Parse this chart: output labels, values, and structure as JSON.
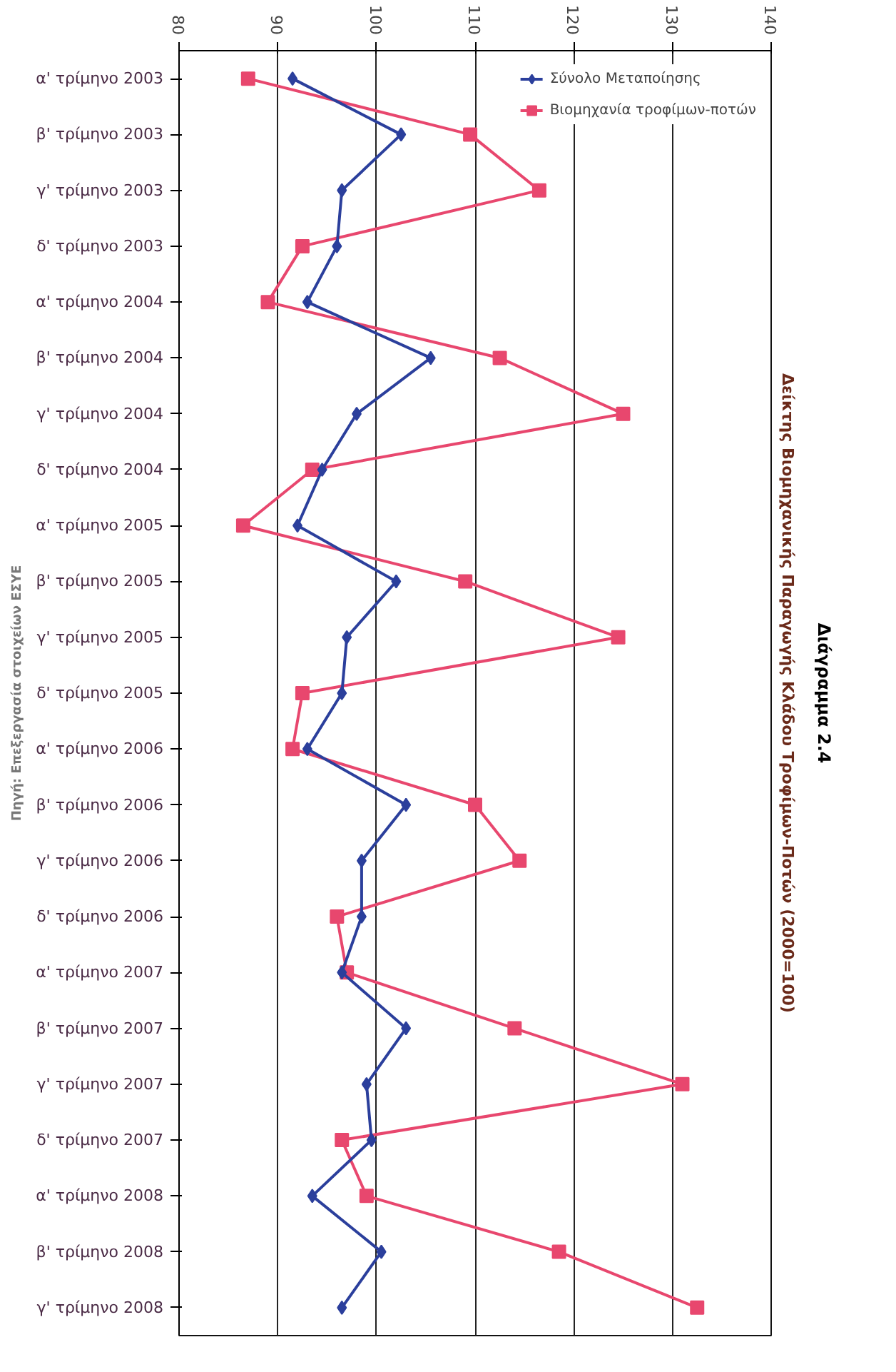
{
  "chart_data": {
    "type": "line",
    "orientation": "horizontal",
    "title": "Διάγραμμα 2.4",
    "subtitle": "Δείκτης Βιομηχανικής Παραγωγής Κλάδου Τροφίμων-Ποτών (2000=100)",
    "categories": [
      "α' τρίμηνο 2003",
      "β' τρίμηνο 2003",
      "γ' τρίμηνο 2003",
      "δ' τρίμηνο 2003",
      "α' τρίμηνο 2004",
      "β' τρίμηνο 2004",
      "γ' τρίμηνο 2004",
      "δ' τρίμηνο 2004",
      "α' τρίμηνο 2005",
      "β' τρίμηνο 2005",
      "γ' τρίμηνο 2005",
      "δ' τρίμηνο 2005",
      "α' τρίμηνο 2006",
      "β' τρίμηνο 2006",
      "γ' τρίμηνο 2006",
      "δ' τρίμηνο 2006",
      "α' τρίμηνο 2007",
      "β' τρίμηνο 2007",
      "γ' τρίμηνο 2007",
      "δ' τρίμηνο 2007",
      "α' τρίμηνο 2008",
      "β' τρίμηνο 2008",
      "γ' τρίμηνο 2008"
    ],
    "series": [
      {
        "name": "Σύνολο Μεταποίησης",
        "color": "#2b3f9c",
        "marker": "diamond",
        "values": [
          91.5,
          102.5,
          96.5,
          96,
          93,
          105.5,
          98,
          94.5,
          92,
          102,
          97,
          96.5,
          93,
          103,
          98.5,
          98.5,
          96.5,
          103,
          99,
          99.5,
          93.5,
          100.5,
          96.5
        ]
      },
      {
        "name": "Βιομηχανία τροφίμων-ποτών",
        "color": "#e8476e",
        "marker": "square",
        "values": [
          87,
          109.5,
          116.5,
          92.5,
          89,
          112.5,
          125,
          93.5,
          86.5,
          109,
          124.5,
          92.5,
          91.5,
          110,
          114.5,
          96,
          97,
          114,
          131,
          96.5,
          99,
          118.5,
          132.5
        ]
      }
    ],
    "xlim": [
      80,
      140
    ],
    "xticks": [
      80,
      90,
      100,
      110,
      120,
      130,
      140
    ],
    "grid": "x",
    "legend": "top right",
    "line_style": "solid",
    "annotations": [
      "Πηγή: Επεξεργασία στοιχείων ΕΣΥΕ"
    ]
  }
}
